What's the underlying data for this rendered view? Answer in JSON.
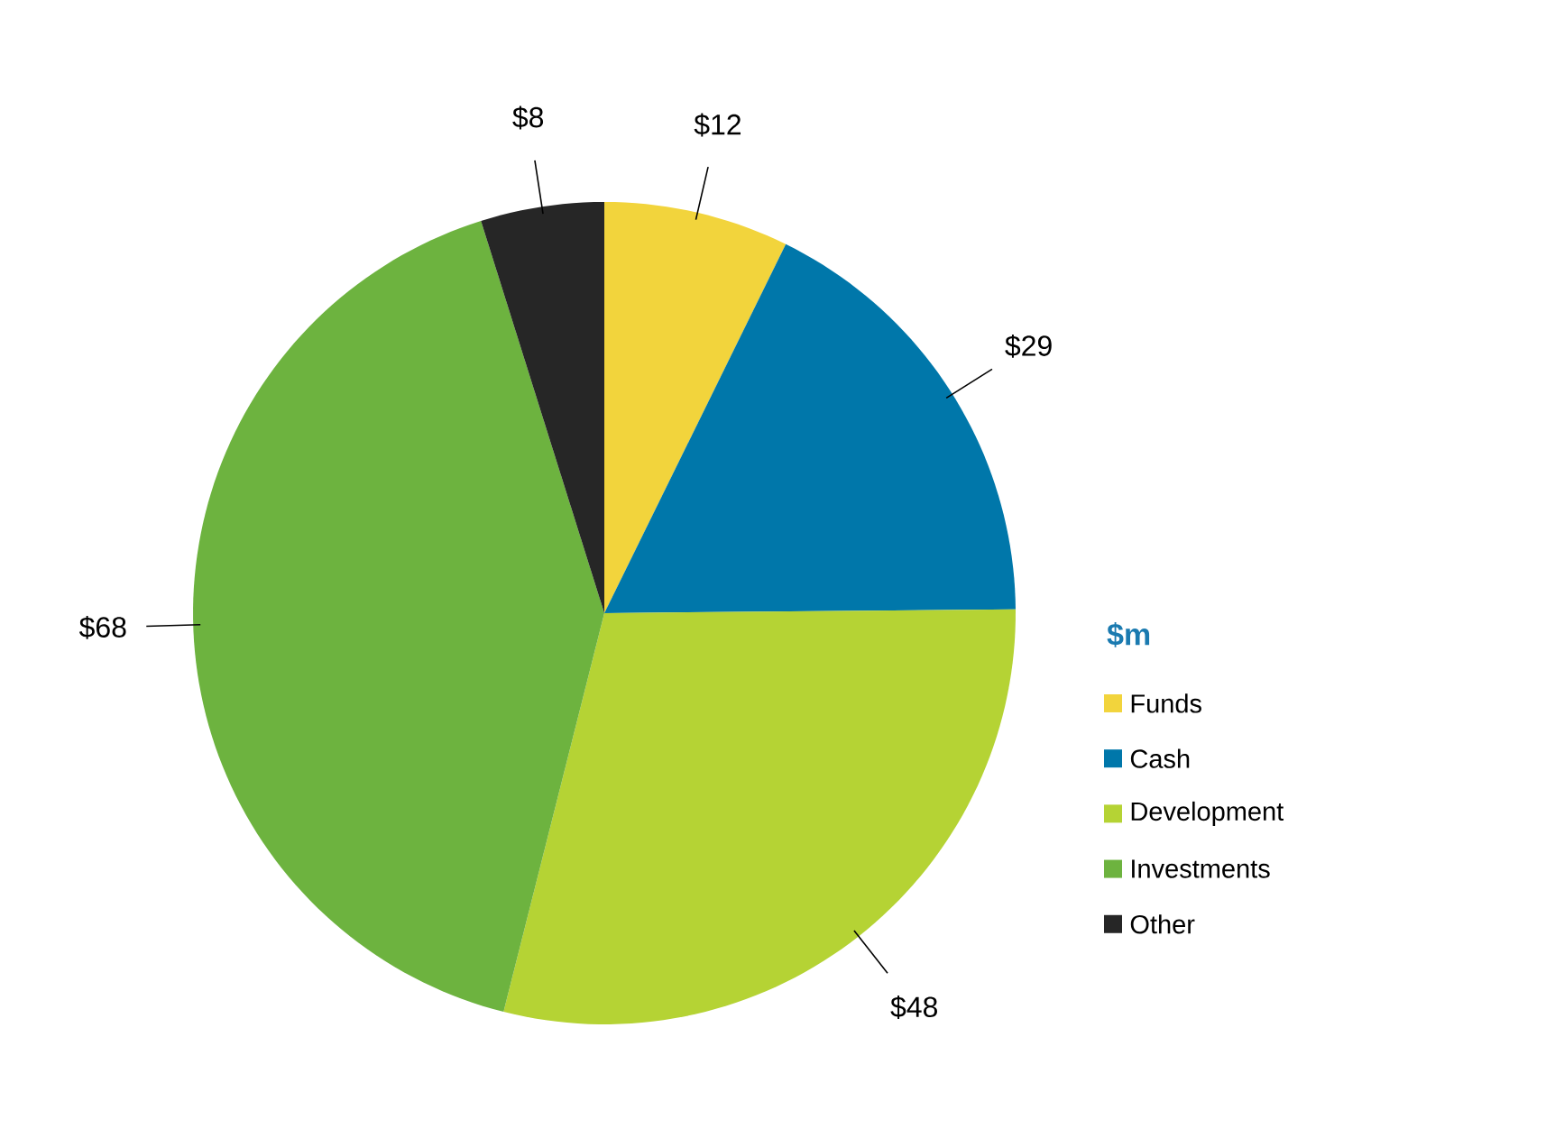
{
  "chart_data": {
    "type": "pie",
    "legend_title": "$m",
    "legend": "right",
    "categories": [
      "Funds",
      "Cash",
      "Development",
      "Investments",
      "Other"
    ],
    "values": [
      12,
      29,
      48,
      68,
      8
    ],
    "colors": [
      "#f2d43c",
      "#0077aa",
      "#b5d334",
      "#6db33f",
      "#262626"
    ],
    "value_labels": [
      "$12",
      "$29",
      "$48",
      "$68",
      "$8"
    ]
  }
}
